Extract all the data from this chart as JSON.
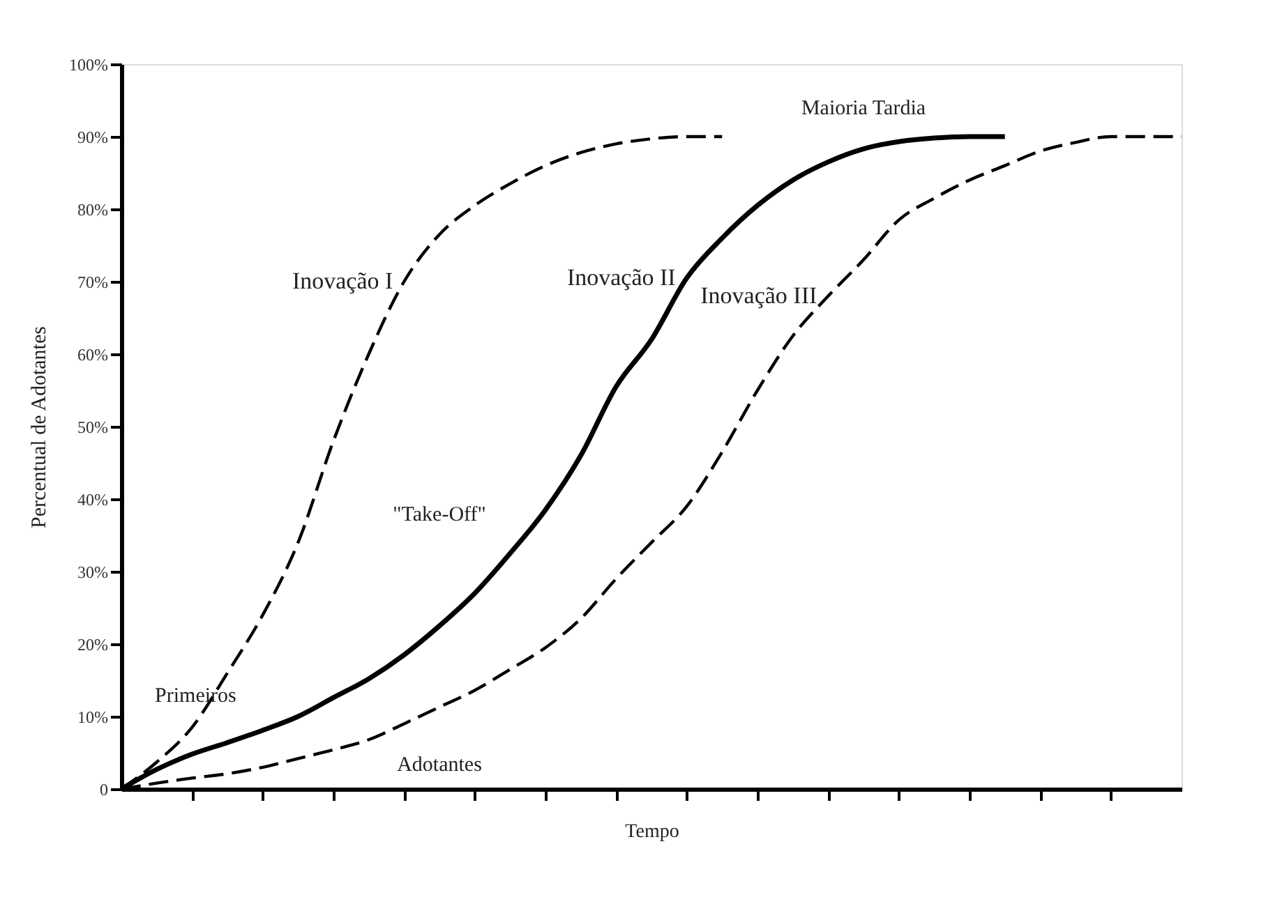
{
  "chart_data": {
    "type": "line",
    "xlabel": "Tempo",
    "ylabel": "Percentual de Adotantes",
    "categories": [
      null,
      null,
      null,
      null,
      null,
      null,
      null,
      null,
      null,
      null,
      null,
      null,
      null,
      null,
      null,
      null,
      null,
      null,
      null,
      null,
      null,
      null,
      null,
      null,
      null,
      null,
      null,
      null,
      null,
      null,
      null
    ],
    "ylim": [
      0,
      100
    ],
    "yticks": [
      {
        "value": 0,
        "label": "0"
      },
      {
        "value": 10,
        "label": "10%"
      },
      {
        "value": 20,
        "label": "20%"
      },
      {
        "value": 30,
        "label": "30%"
      },
      {
        "value": 40,
        "label": "40%"
      },
      {
        "value": 50,
        "label": "50%"
      },
      {
        "value": 60,
        "label": "60%"
      },
      {
        "value": 70,
        "label": "70%"
      },
      {
        "value": 80,
        "label": "80%"
      },
      {
        "value": 90,
        "label": "90%"
      },
      {
        "value": 100,
        "label": "100%"
      }
    ],
    "tick_labels": "y",
    "grid": false,
    "legend": false,
    "marker": "none",
    "series": [
      {
        "name": "Inovação I",
        "color": "#000000",
        "line_style": "dashed",
        "values": [
          0,
          3.7,
          8.5,
          16,
          24,
          34,
          48,
          60,
          70,
          76.5,
          80.5,
          83.5,
          86,
          87.8,
          89,
          89.7,
          90,
          90,
          null,
          null,
          null,
          null,
          null,
          null,
          null,
          null,
          null,
          null,
          null,
          null,
          null
        ]
      },
      {
        "name": "Inovação II",
        "color": "#000000",
        "line_style": "solid",
        "values": [
          0,
          2.7,
          4.8,
          6.4,
          8.1,
          10,
          12.6,
          15.2,
          18.5,
          22.5,
          27,
          32.5,
          38.5,
          46,
          55.5,
          62,
          70.5,
          76,
          80.5,
          84,
          86.5,
          88.3,
          89.3,
          89.8,
          90,
          90,
          null,
          null,
          null,
          null,
          null
        ]
      },
      {
        "name": "Inovação III",
        "color": "#000000",
        "line_style": "dashed",
        "values": [
          0,
          0.8,
          1.5,
          2.1,
          3,
          4.2,
          5.4,
          6.8,
          9,
          11.3,
          13.6,
          16.5,
          19.5,
          23.5,
          29,
          34,
          39,
          46.5,
          55,
          62.5,
          68,
          73,
          78.5,
          81.5,
          84,
          86,
          88,
          89.2,
          90,
          90,
          90
        ]
      }
    ],
    "annotations": [
      "Maioria Tardia",
      "\"Take-Off\"",
      "Primeiros",
      "Adotantes"
    ]
  }
}
